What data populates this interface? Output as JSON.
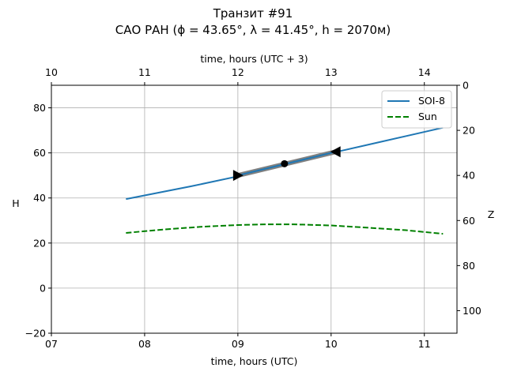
{
  "chart_data": {
    "type": "line",
    "title_line1": "Транзит #91",
    "title_line2": "САО РАН (ϕ = 43.65°, λ = 41.45°, h = 2070м)",
    "xlabel": "time, hours (UTC)",
    "xlabel_top": "time, hours (UTC + 3)",
    "ylabel": "H",
    "ylabel_right": "Z",
    "xlim": [
      7.0,
      11.35
    ],
    "ylim": [
      -20,
      90
    ],
    "x_ticks": [
      7,
      8,
      9,
      10,
      11
    ],
    "x_tick_labels": [
      "07",
      "08",
      "09",
      "10",
      "11"
    ],
    "y_ticks": [
      -20,
      0,
      20,
      40,
      60,
      80
    ],
    "y_tick_labels": [
      "−20",
      "0",
      "20",
      "40",
      "60",
      "80"
    ],
    "top_ticks": [
      10,
      11,
      12,
      13,
      14
    ],
    "top_tick_labels": [
      "10",
      "11",
      "12",
      "13",
      "14"
    ],
    "right_ticks": [
      0,
      20,
      40,
      60,
      80,
      100
    ],
    "right_tick_labels": [
      "0",
      "20",
      "40",
      "60",
      "80",
      "100"
    ],
    "grid": true,
    "legend_position": "top-right",
    "series": [
      {
        "name": "SOI-8",
        "style": "solid",
        "color": "#1f77b4",
        "x": [
          7.8,
          8.5,
          9.0,
          9.5,
          10.0,
          10.5,
          11.2
        ],
        "y": [
          39.5,
          45.2,
          49.6,
          54.8,
          59.9,
          64.6,
          71.2
        ]
      },
      {
        "name": "Sun",
        "style": "dashed",
        "color": "#008000",
        "x": [
          7.8,
          8.2,
          8.6,
          9.0,
          9.3,
          9.6,
          10.0,
          10.4,
          10.8,
          11.2
        ],
        "y": [
          24.5,
          26.0,
          27.2,
          28.0,
          28.3,
          28.3,
          27.8,
          26.8,
          25.7,
          24.1
        ]
      }
    ],
    "transit": {
      "name": "transit",
      "color": "#808080",
      "x_start": 9.0,
      "y_start": 50.0,
      "x_mid": 9.5,
      "y_mid": 55.2,
      "x_end": 10.05,
      "y_end": 60.5
    }
  }
}
